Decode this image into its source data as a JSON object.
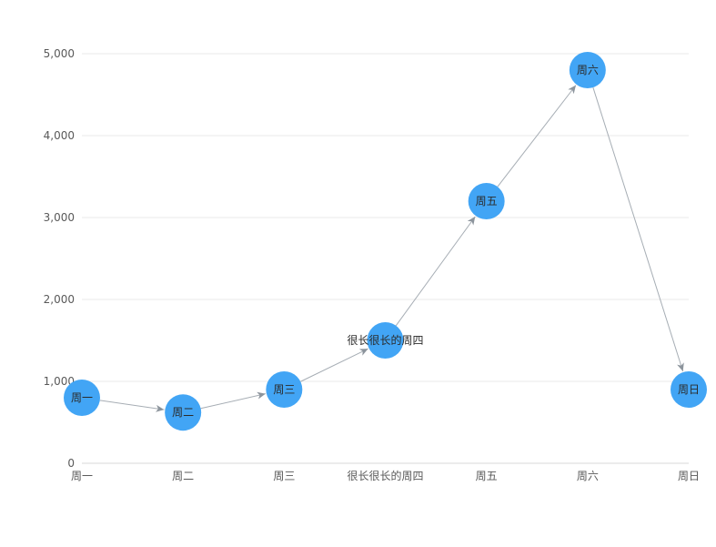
{
  "chart_data": {
    "type": "line",
    "title": "",
    "xlabel": "",
    "ylabel": "",
    "categories": [
      "周一",
      "周二",
      "周三",
      "很长很长的周四",
      "周五",
      "周六",
      "周日"
    ],
    "series": [
      {
        "values": [
          800,
          620,
          900,
          1500,
          3200,
          4800,
          900
        ]
      }
    ],
    "ylim": [
      0,
      5000
    ],
    "y_ticks": [
      0,
      1000,
      2000,
      3000,
      4000,
      5000
    ],
    "y_tick_labels": [
      "0",
      "1,000",
      "2,000",
      "3,000",
      "4,000",
      "5,000"
    ],
    "grid": true,
    "legend": "none",
    "markers": "circle-with-label",
    "connectors": "arrows",
    "colors": {
      "node": "#42a5f5",
      "edge": "#a6adb4",
      "edge_arrow": "#8c949c",
      "grid": "#e9e9e9",
      "tick": "#595959"
    }
  }
}
